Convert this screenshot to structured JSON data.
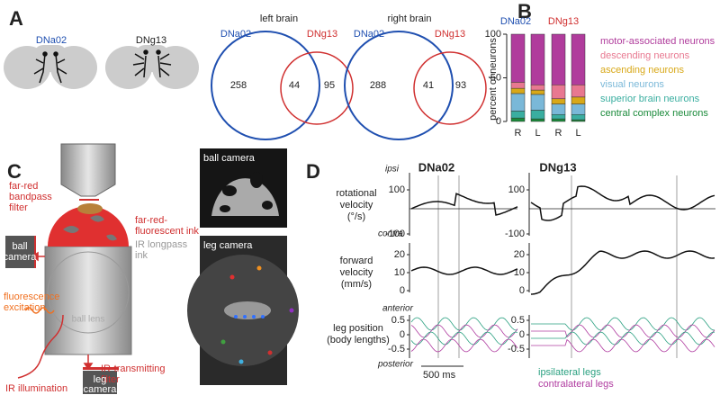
{
  "panel_a": {
    "label": "A",
    "brains": [
      "DNa02",
      "DNg13"
    ],
    "venns": [
      {
        "title": "left brain",
        "set_a": "DNa02",
        "set_b": "DNg13",
        "only_a": "258",
        "both": "44",
        "only_b": "95"
      },
      {
        "title": "right brain",
        "set_a": "DNa02",
        "set_b": "DNg13",
        "only_a": "288",
        "both": "41",
        "only_b": "93"
      }
    ]
  },
  "chart_data": {
    "type": "bar",
    "stacked": true,
    "label": "B",
    "groups": [
      "DNa02",
      "DNg13"
    ],
    "categories": [
      "R",
      "L",
      "R",
      "L"
    ],
    "y_label": "percent of neurons",
    "ylim": [
      0,
      100
    ],
    "yticks": [
      0,
      50,
      100
    ],
    "series": [
      {
        "name": "central complex neurons",
        "color": "#1a8a3a",
        "values": [
          4,
          3,
          3,
          2
        ]
      },
      {
        "name": "superior brain neurons",
        "color": "#3aaea0",
        "values": [
          8,
          10,
          5,
          6
        ]
      },
      {
        "name": "visual neurons",
        "color": "#7ab8d8",
        "values": [
          20,
          18,
          12,
          12
        ]
      },
      {
        "name": "ascending neurons",
        "color": "#d8a818",
        "values": [
          6,
          5,
          6,
          8
        ]
      },
      {
        "name": "descending neurons",
        "color": "#e87890",
        "values": [
          7,
          6,
          16,
          14
        ]
      },
      {
        "name": "motor-associated neurons",
        "color": "#b03c9c",
        "values": [
          55,
          58,
          58,
          58
        ]
      }
    ]
  },
  "panel_c": {
    "label": "C",
    "far_red_filter": [
      "far-red",
      "bandpass",
      "filter"
    ],
    "ink": [
      "far-red-",
      "fluorescent ink"
    ],
    "ir_ink": [
      "IR longpass",
      "ink"
    ],
    "ball_camera": [
      "ball",
      "camera"
    ],
    "excitation": [
      "fluorescence",
      "excitation"
    ],
    "ball_lens": "ball lens",
    "ir_filter": [
      "IR-transmitting",
      "filter"
    ],
    "leg_camera": [
      "leg",
      "camera"
    ],
    "ir_illumination": "IR illumination",
    "photo_ball": "ball camera",
    "photo_leg": "leg camera"
  },
  "panel_d": {
    "label": "D",
    "columns": [
      "DNa02",
      "DNg13"
    ],
    "ipsi": "ipsi",
    "contra": "contra",
    "rotational": {
      "label": [
        "rotational",
        "velocity",
        "(°/s)"
      ],
      "ticks": [
        100,
        -100
      ]
    },
    "forward": {
      "label": [
        "forward",
        "velocity",
        "(mm/s)"
      ],
      "ticks": [
        20,
        10,
        0
      ]
    },
    "legs": {
      "label": [
        "leg position",
        "(body lengths)"
      ],
      "ticks": [
        0.5,
        0,
        -0.5
      ]
    },
    "anterior": "anterior",
    "posterior": "posterior",
    "scale": "500 ms",
    "legend": [
      "ipsilateral legs",
      "contralateral legs"
    ]
  }
}
